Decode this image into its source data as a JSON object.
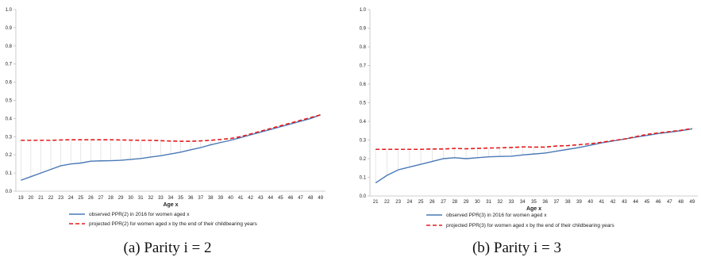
{
  "colors": {
    "observed": "#4a78b5",
    "projected": "#e41a1c",
    "drop": "#b0b0b0",
    "axis": "#bfbfbf"
  },
  "chart_data": [
    {
      "type": "line",
      "caption": "(a) Parity i = 2",
      "xlabel": "Age x",
      "ylabel": "",
      "ylim": [
        0,
        1
      ],
      "yticks": [
        "0.0",
        "0.1",
        "0.2",
        "0.3",
        "0.4",
        "0.5",
        "0.6",
        "0.7",
        "0.8",
        "0.9",
        "1.0"
      ],
      "x": [
        19,
        20,
        21,
        22,
        23,
        24,
        25,
        26,
        27,
        28,
        29,
        30,
        31,
        32,
        33,
        34,
        35,
        36,
        37,
        38,
        39,
        40,
        41,
        42,
        43,
        44,
        45,
        46,
        47,
        48,
        49
      ],
      "grid": false,
      "legend_placement": "bottom",
      "drop_lines": true,
      "series": [
        {
          "name": "observed PPR(2) in 2016 for women aged x",
          "style": "solid",
          "color": "#4a78b5",
          "values": [
            0.06,
            0.08,
            0.1,
            0.12,
            0.14,
            0.15,
            0.155,
            0.165,
            0.167,
            0.168,
            0.17,
            0.175,
            0.18,
            0.188,
            0.195,
            0.205,
            0.215,
            0.228,
            0.24,
            0.255,
            0.268,
            0.28,
            0.295,
            0.31,
            0.325,
            0.34,
            0.355,
            0.37,
            0.385,
            0.4,
            0.42
          ]
        },
        {
          "name": "projected PPR(2) for women aged x by the end of their childbearing years",
          "style": "dashed",
          "color": "#e41a1c",
          "values": [
            0.28,
            0.28,
            0.28,
            0.28,
            0.282,
            0.283,
            0.283,
            0.283,
            0.283,
            0.283,
            0.282,
            0.281,
            0.28,
            0.28,
            0.278,
            0.276,
            0.275,
            0.275,
            0.277,
            0.28,
            0.285,
            0.29,
            0.3,
            0.315,
            0.33,
            0.345,
            0.36,
            0.375,
            0.39,
            0.405,
            0.42
          ]
        }
      ]
    },
    {
      "type": "line",
      "caption": "(b) Parity i = 3",
      "xlabel": "Age x",
      "ylabel": "",
      "ylim": [
        0,
        1
      ],
      "yticks": [
        "0.0",
        "0.1",
        "0.2",
        "0.3",
        "0.4",
        "0.5",
        "0.6",
        "0.7",
        "0.8",
        "0.9",
        "1.0"
      ],
      "x": [
        21,
        22,
        23,
        24,
        25,
        26,
        27,
        28,
        29,
        30,
        31,
        32,
        33,
        34,
        35,
        36,
        37,
        38,
        39,
        40,
        41,
        42,
        43,
        44,
        45,
        46,
        47,
        48,
        49
      ],
      "grid": false,
      "legend_placement": "bottom",
      "drop_lines": true,
      "series": [
        {
          "name": "observed PPR(3) in 2016 for women aged x",
          "style": "solid",
          "color": "#4a78b5",
          "values": [
            0.07,
            0.11,
            0.14,
            0.155,
            0.17,
            0.185,
            0.2,
            0.205,
            0.2,
            0.205,
            0.21,
            0.212,
            0.213,
            0.22,
            0.225,
            0.23,
            0.24,
            0.25,
            0.26,
            0.272,
            0.285,
            0.295,
            0.305,
            0.315,
            0.325,
            0.335,
            0.342,
            0.35,
            0.36
          ]
        },
        {
          "name": "projected PPR(3) for women aged x by the end of their childbearing years",
          "style": "dashed",
          "color": "#e41a1c",
          "values": [
            0.25,
            0.25,
            0.25,
            0.25,
            0.25,
            0.252,
            0.252,
            0.255,
            0.253,
            0.255,
            0.257,
            0.258,
            0.26,
            0.263,
            0.262,
            0.262,
            0.268,
            0.27,
            0.275,
            0.28,
            0.288,
            0.297,
            0.305,
            0.318,
            0.33,
            0.338,
            0.345,
            0.352,
            0.362
          ]
        }
      ]
    }
  ]
}
